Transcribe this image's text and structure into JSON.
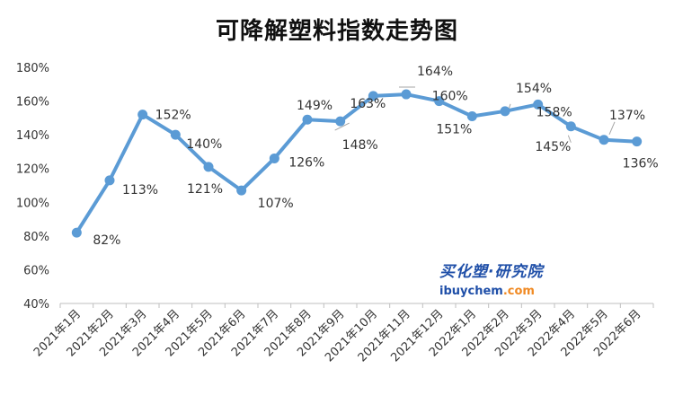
{
  "chart_data": {
    "type": "line",
    "title": "可降解塑料指数走势图",
    "categories": [
      "2021年1月",
      "2021年2月",
      "2021年3月",
      "2021年4月",
      "2021年5月",
      "2021年6月",
      "2021年7月",
      "2021年8月",
      "2021年9月",
      "2021年10月",
      "2021年11月",
      "2021年12月",
      "2022年1月",
      "2022年2月",
      "2022年3月",
      "2022年4月",
      "2022年5月",
      "2022年6月"
    ],
    "series": [
      {
        "values": [
          82,
          113,
          152,
          140,
          121,
          107,
          126,
          149,
          148,
          163,
          164,
          160,
          151,
          154,
          158,
          145,
          137,
          136
        ]
      }
    ],
    "data_labels": [
      "82%",
      "113%",
      "152%",
      "140%",
      "121%",
      "107%",
      "126%",
      "149%",
      "148%",
      "163%",
      "164%",
      "160%",
      "151%",
      "154%",
      "158%",
      "145%",
      "137%",
      "136%"
    ],
    "y_unit": "%",
    "ylim": [
      40,
      180
    ],
    "y_ticks": [
      "40%",
      "60%",
      "80%",
      "100%",
      "120%",
      "140%",
      "160%",
      "180%"
    ],
    "grid": false,
    "line_color": "#5b9bd5",
    "text_color": "#333333"
  },
  "watermark": {
    "brand": "买化塑·研究院",
    "url_main": "ibuychem",
    "url_suffix": ".com",
    "brand_color": "#1f4fa8",
    "accent_color": "#f08a24"
  }
}
